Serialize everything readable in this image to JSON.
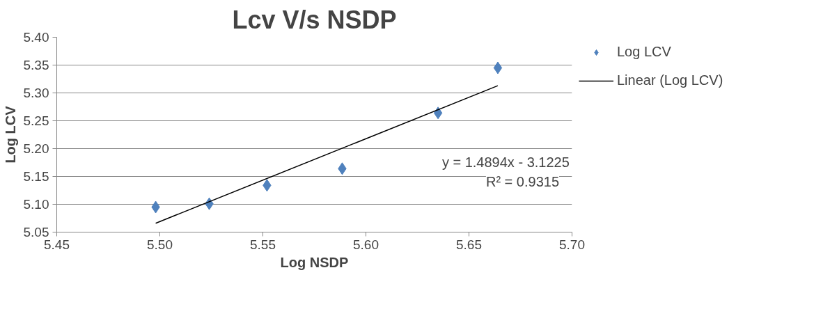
{
  "chart_data": {
    "type": "scatter",
    "title": "Lcv V/s NSDP",
    "xlabel": "Log NSDP",
    "ylabel": "Log LCV",
    "series": [
      {
        "name": "Log LCV",
        "color": "#4f81bd",
        "marker": "diamond",
        "x": [
          5.498,
          5.524,
          5.552,
          5.5885,
          5.635,
          5.664
        ],
        "values": [
          5.095,
          5.101,
          5.134,
          5.164,
          5.264,
          5.345
        ]
      },
      {
        "name": "Linear (Log LCV)",
        "type": "line",
        "color": "#000000",
        "marker": "none",
        "x": [
          5.498,
          5.664
        ],
        "values": [
          5.066,
          5.313
        ]
      }
    ],
    "annotations": [
      "y = 1.4894x - 3.1225",
      "R² = 0.9315"
    ],
    "xlim": [
      5.45,
      5.7
    ],
    "ylim": [
      5.05,
      5.4
    ],
    "xticks": [
      {
        "value": 5.45,
        "label": "5.45"
      },
      {
        "value": 5.5,
        "label": "5.50"
      },
      {
        "value": 5.55,
        "label": "5.55"
      },
      {
        "value": 5.6,
        "label": "5.60"
      },
      {
        "value": 5.65,
        "label": "5.65"
      },
      {
        "value": 5.7,
        "label": "5.70"
      }
    ],
    "yticks": [
      {
        "value": 5.05,
        "label": "5.05"
      },
      {
        "value": 5.1,
        "label": "5.10"
      },
      {
        "value": 5.15,
        "label": "5.15"
      },
      {
        "value": 5.2,
        "label": "5.20"
      },
      {
        "value": 5.25,
        "label": "5.25"
      },
      {
        "value": 5.3,
        "label": "5.30"
      },
      {
        "value": 5.35,
        "label": "5.35"
      },
      {
        "value": 5.4,
        "label": "5.40"
      }
    ],
    "grid": "y",
    "legend": "right"
  }
}
